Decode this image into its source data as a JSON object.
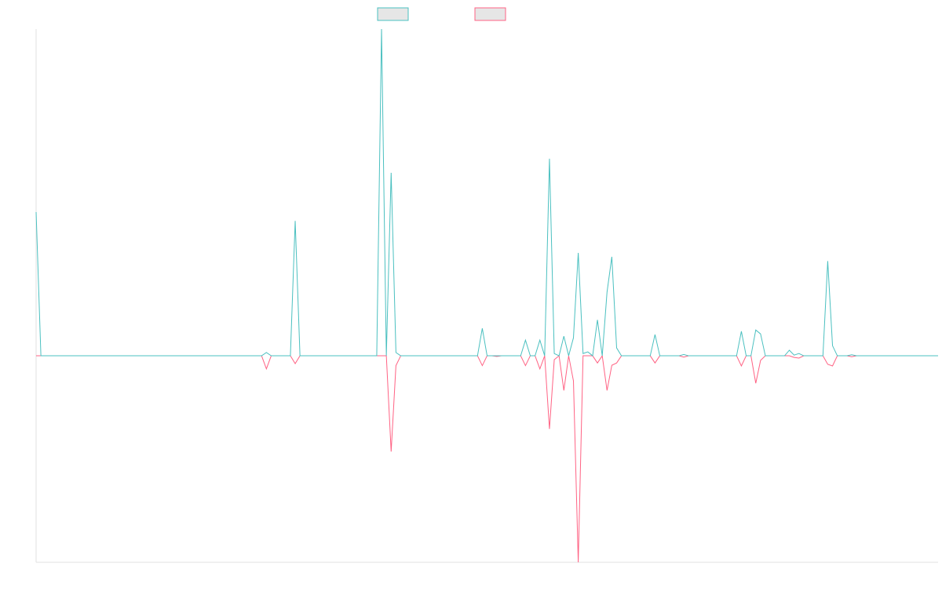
{
  "chart_data": {
    "type": "line",
    "categories": [
      null,
      null,
      null,
      null,
      null,
      null,
      null,
      null,
      null,
      null,
      null,
      null,
      null,
      null,
      null,
      null,
      null,
      null,
      null,
      null,
      null,
      null,
      null,
      null,
      null,
      null,
      null,
      null,
      null,
      null,
      null,
      null,
      null,
      null,
      null,
      null,
      null,
      null,
      null,
      null,
      null,
      null,
      null,
      null,
      null,
      null,
      null,
      null,
      null,
      null,
      null,
      null,
      null,
      null,
      null,
      null,
      null,
      null,
      null,
      null,
      null,
      null,
      null,
      null,
      null,
      null,
      null,
      null,
      null,
      null,
      null,
      null,
      null,
      null,
      null,
      null,
      null,
      null,
      null,
      null,
      null,
      null,
      null,
      null,
      null,
      null,
      null,
      null,
      null,
      null,
      null,
      null,
      null,
      null,
      null,
      null,
      null,
      null,
      null,
      null,
      null,
      null,
      null,
      null,
      null,
      null,
      null,
      null,
      null,
      null,
      null,
      null,
      null,
      null,
      null,
      null,
      null,
      null,
      null,
      null,
      null,
      null,
      null,
      null,
      null,
      null,
      null,
      null,
      null,
      null,
      null,
      null,
      null,
      null,
      null,
      null,
      null,
      null,
      null,
      null,
      null,
      null,
      null,
      null,
      null,
      null,
      null,
      null,
      null,
      null,
      null,
      null,
      null,
      null,
      null,
      null,
      null,
      null,
      null,
      null,
      null,
      null,
      null,
      null,
      null,
      null,
      null,
      null,
      null,
      null,
      null,
      null,
      null,
      null,
      null,
      null,
      null,
      null,
      null,
      null,
      null,
      null,
      null,
      null,
      null,
      null,
      null,
      null,
      null
    ],
    "series": [
      {
        "color": "#4bc0c0",
        "values": [
          4.4,
          0,
          0,
          0,
          0,
          0,
          0,
          0,
          0,
          0,
          0,
          0,
          0,
          0,
          0,
          0,
          0,
          0,
          0,
          0,
          0,
          0,
          0,
          0,
          0,
          0,
          0,
          0,
          0,
          0,
          0,
          0,
          0,
          0,
          0,
          0,
          0,
          0,
          0,
          0,
          0,
          0,
          0,
          0,
          0,
          0,
          0,
          0,
          0.1,
          0,
          0,
          0,
          0,
          0,
          4.13,
          0,
          0,
          0,
          0,
          0,
          0,
          0,
          0,
          0,
          0,
          0,
          0,
          0,
          0,
          0,
          0,
          0,
          10,
          0,
          5.6,
          0.1,
          0,
          0,
          0,
          0,
          0,
          0,
          0,
          0,
          0,
          0,
          0,
          0,
          0,
          0,
          0,
          0,
          0,
          0.84,
          0,
          0,
          0,
          0,
          0,
          0,
          0,
          0,
          0.48,
          0,
          0,
          0.48,
          0,
          6.03,
          0.07,
          0,
          0.6,
          0,
          0.55,
          3.15,
          0.07,
          0.12,
          0,
          1.1,
          0,
          1.95,
          3.03,
          0.24,
          0,
          0,
          0,
          0,
          0,
          0,
          0,
          0.65,
          0,
          0,
          0,
          0,
          0,
          0.04,
          0,
          0,
          0,
          0,
          0,
          0,
          0,
          0,
          0,
          0,
          0,
          0.75,
          0,
          0,
          0.79,
          0.67,
          0,
          0,
          0,
          0,
          0,
          0.17,
          0.02,
          0.07,
          0,
          0,
          0,
          0,
          0,
          2.9,
          0.31,
          0,
          0,
          0,
          0.03,
          0,
          0,
          0,
          0,
          0,
          0,
          0,
          0,
          0,
          0,
          0,
          0,
          0,
          0,
          0,
          0,
          0,
          0
        ]
      },
      {
        "color": "#ff6384",
        "values": [
          0,
          0,
          0,
          0,
          0,
          0,
          0,
          0,
          0,
          0,
          0,
          0,
          0,
          0,
          0,
          0,
          0,
          0,
          0,
          0,
          0,
          0,
          0,
          0,
          0,
          0,
          0,
          0,
          0,
          0,
          0,
          0,
          0,
          0,
          0,
          0,
          0,
          0,
          0,
          0,
          0,
          0,
          0,
          0,
          0,
          0,
          0,
          0,
          -0.4,
          0,
          0,
          0,
          0,
          0,
          -0.24,
          0,
          0,
          0,
          0,
          0,
          0,
          0,
          0,
          0,
          0,
          0,
          0,
          0,
          0,
          0,
          0,
          0,
          0,
          0,
          -2.93,
          -0.3,
          0,
          0,
          0,
          0,
          0,
          0,
          0,
          0,
          0,
          0,
          0,
          0,
          0,
          0,
          0,
          0,
          0,
          -0.3,
          0,
          0,
          -0.02,
          0,
          0,
          0,
          0,
          0,
          -0.3,
          0,
          0,
          -0.4,
          0,
          -2.24,
          -0.12,
          0,
          -1.06,
          0,
          -0.77,
          -6.32,
          0,
          0,
          0,
          -0.22,
          0,
          -1.06,
          -0.29,
          -0.22,
          0,
          0,
          0,
          0,
          0,
          0,
          0,
          -0.22,
          0,
          0,
          0,
          0,
          0,
          -0.04,
          0,
          0,
          0,
          0,
          0,
          0,
          0,
          0,
          0,
          0,
          0,
          -0.31,
          0,
          0,
          -0.84,
          -0.14,
          0,
          0,
          0,
          0,
          0,
          0,
          -0.05,
          -0.07,
          0,
          0,
          0,
          0,
          0,
          -0.26,
          -0.31,
          0,
          0,
          0,
          -0.03,
          0,
          0,
          0,
          0,
          0,
          0,
          0,
          0,
          0,
          0,
          0,
          0,
          0,
          0,
          0,
          0,
          0,
          0
        ]
      }
    ],
    "ylim": [
      -6.32,
      10
    ],
    "grid": false
  }
}
